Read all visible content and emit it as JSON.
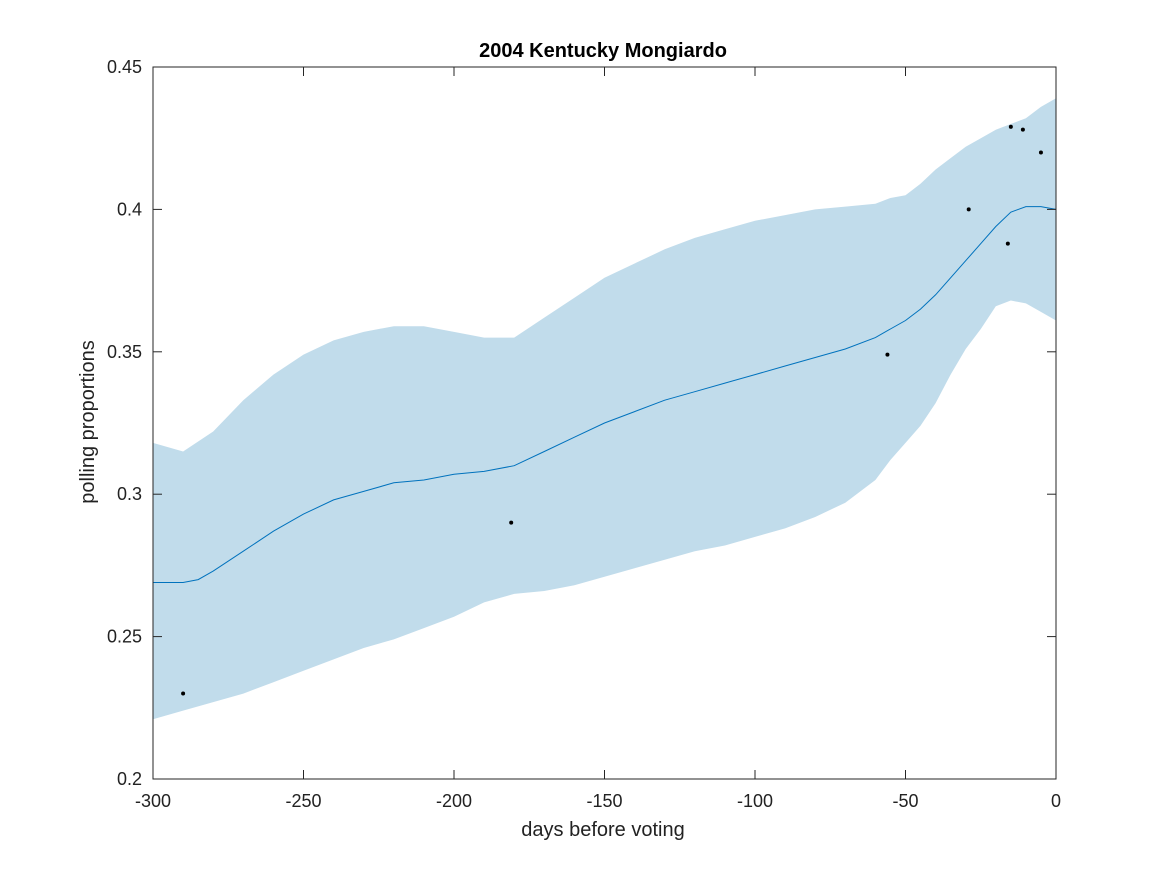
{
  "chart_data": {
    "type": "line",
    "title": "2004 Kentucky Mongiardo",
    "xlabel": "days before voting",
    "ylabel": "polling proportions",
    "xlim": [
      -300,
      0
    ],
    "ylim": [
      0.2,
      0.45
    ],
    "xticks": [
      -300,
      -250,
      -200,
      -150,
      -100,
      -50,
      0
    ],
    "xtick_labels": [
      "-300",
      "-250",
      "-200",
      "-150",
      "-100",
      "-50",
      "0"
    ],
    "yticks": [
      0.2,
      0.25,
      0.3,
      0.35,
      0.4,
      0.45
    ],
    "ytick_labels": [
      "0.2",
      "0.25",
      "0.3",
      "0.35",
      "0.4",
      "0.45"
    ],
    "grid": false,
    "colors": {
      "band": "#c1dceb",
      "line": "#0072bd",
      "points": "#000000",
      "axes": "#262626"
    },
    "band": {
      "x": [
        -300,
        -290,
        -280,
        -270,
        -260,
        -250,
        -240,
        -230,
        -220,
        -210,
        -200,
        -190,
        -180,
        -170,
        -160,
        -150,
        -140,
        -130,
        -120,
        -110,
        -100,
        -90,
        -80,
        -70,
        -60,
        -55,
        -50,
        -45,
        -40,
        -35,
        -30,
        -25,
        -20,
        -15,
        -10,
        -5,
        0
      ],
      "upper": [
        0.318,
        0.315,
        0.322,
        0.333,
        0.342,
        0.349,
        0.354,
        0.357,
        0.359,
        0.359,
        0.357,
        0.355,
        0.355,
        0.362,
        0.369,
        0.376,
        0.381,
        0.386,
        0.39,
        0.393,
        0.396,
        0.398,
        0.4,
        0.401,
        0.402,
        0.404,
        0.405,
        0.409,
        0.414,
        0.418,
        0.422,
        0.425,
        0.428,
        0.43,
        0.432,
        0.436,
        0.439
      ],
      "lower": [
        0.221,
        0.224,
        0.227,
        0.23,
        0.234,
        0.238,
        0.242,
        0.246,
        0.249,
        0.253,
        0.257,
        0.262,
        0.265,
        0.266,
        0.268,
        0.271,
        0.274,
        0.277,
        0.28,
        0.282,
        0.285,
        0.288,
        0.292,
        0.297,
        0.305,
        0.312,
        0.318,
        0.324,
        0.332,
        0.342,
        0.351,
        0.358,
        0.366,
        0.368,
        0.367,
        0.364,
        0.361
      ]
    },
    "series": [
      {
        "x": [
          -300,
          -290,
          -285,
          -280,
          -270,
          -260,
          -250,
          -240,
          -230,
          -220,
          -210,
          -200,
          -190,
          -180,
          -170,
          -160,
          -150,
          -140,
          -130,
          -120,
          -110,
          -100,
          -90,
          -80,
          -70,
          -60,
          -55,
          -50,
          -45,
          -40,
          -35,
          -30,
          -25,
          -20,
          -15,
          -10,
          -5,
          0
        ],
        "y": [
          0.269,
          0.269,
          0.27,
          0.273,
          0.28,
          0.287,
          0.293,
          0.298,
          0.301,
          0.304,
          0.305,
          0.307,
          0.308,
          0.31,
          0.315,
          0.32,
          0.325,
          0.329,
          0.333,
          0.336,
          0.339,
          0.342,
          0.345,
          0.348,
          0.351,
          0.355,
          0.358,
          0.361,
          0.365,
          0.37,
          0.376,
          0.382,
          0.388,
          0.394,
          0.399,
          0.401,
          0.401,
          0.4
        ]
      }
    ],
    "points": {
      "x": [
        -290,
        -181,
        -56,
        -29,
        -16,
        -15,
        -11,
        -5
      ],
      "y": [
        0.23,
        0.29,
        0.349,
        0.4,
        0.388,
        0.429,
        0.428,
        0.42
      ]
    }
  }
}
